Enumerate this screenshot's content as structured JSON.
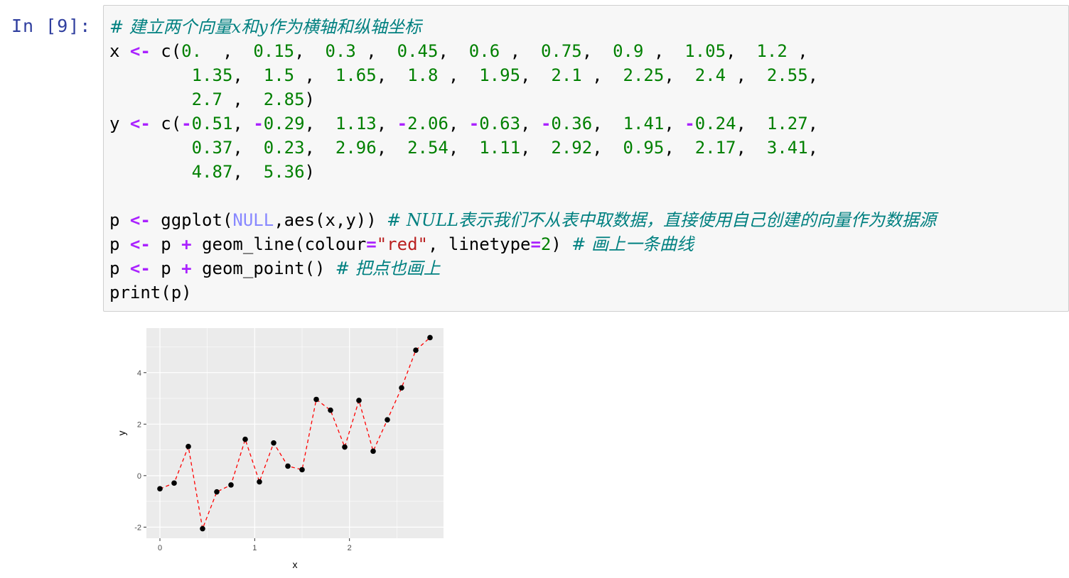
{
  "cell": {
    "prompt": "In [9]:",
    "code_lines": [
      [
        {
          "t": "# 建立两个向量x和y作为横轴和纵轴坐标",
          "c": "cm"
        }
      ],
      [
        {
          "t": "x ",
          "c": "fn"
        },
        {
          "t": "<-",
          "c": "op"
        },
        {
          "t": " c(",
          "c": "fn"
        },
        {
          "t": "0.",
          "c": "num"
        },
        {
          "t": "  ,  ",
          "c": "fn"
        },
        {
          "t": "0.15",
          "c": "num"
        },
        {
          "t": ",  ",
          "c": "fn"
        },
        {
          "t": "0.3",
          "c": "num"
        },
        {
          "t": " ,  ",
          "c": "fn"
        },
        {
          "t": "0.45",
          "c": "num"
        },
        {
          "t": ",  ",
          "c": "fn"
        },
        {
          "t": "0.6",
          "c": "num"
        },
        {
          "t": " ,  ",
          "c": "fn"
        },
        {
          "t": "0.75",
          "c": "num"
        },
        {
          "t": ",  ",
          "c": "fn"
        },
        {
          "t": "0.9",
          "c": "num"
        },
        {
          "t": " ,  ",
          "c": "fn"
        },
        {
          "t": "1.05",
          "c": "num"
        },
        {
          "t": ",  ",
          "c": "fn"
        },
        {
          "t": "1.2",
          "c": "num"
        },
        {
          "t": " ,",
          "c": "fn"
        }
      ],
      [
        {
          "t": "        ",
          "c": "fn"
        },
        {
          "t": "1.35",
          "c": "num"
        },
        {
          "t": ",  ",
          "c": "fn"
        },
        {
          "t": "1.5",
          "c": "num"
        },
        {
          "t": " ,  ",
          "c": "fn"
        },
        {
          "t": "1.65",
          "c": "num"
        },
        {
          "t": ",  ",
          "c": "fn"
        },
        {
          "t": "1.8",
          "c": "num"
        },
        {
          "t": " ,  ",
          "c": "fn"
        },
        {
          "t": "1.95",
          "c": "num"
        },
        {
          "t": ",  ",
          "c": "fn"
        },
        {
          "t": "2.1",
          "c": "num"
        },
        {
          "t": " ,  ",
          "c": "fn"
        },
        {
          "t": "2.25",
          "c": "num"
        },
        {
          "t": ",  ",
          "c": "fn"
        },
        {
          "t": "2.4",
          "c": "num"
        },
        {
          "t": " ,  ",
          "c": "fn"
        },
        {
          "t": "2.55",
          "c": "num"
        },
        {
          "t": ",",
          "c": "fn"
        }
      ],
      [
        {
          "t": "        ",
          "c": "fn"
        },
        {
          "t": "2.7",
          "c": "num"
        },
        {
          "t": " ,  ",
          "c": "fn"
        },
        {
          "t": "2.85",
          "c": "num"
        },
        {
          "t": ")",
          "c": "fn"
        }
      ],
      [
        {
          "t": "y ",
          "c": "fn"
        },
        {
          "t": "<-",
          "c": "op"
        },
        {
          "t": " c(",
          "c": "fn"
        },
        {
          "t": "-",
          "c": "op"
        },
        {
          "t": "0.51",
          "c": "num"
        },
        {
          "t": ", ",
          "c": "fn"
        },
        {
          "t": "-",
          "c": "op"
        },
        {
          "t": "0.29",
          "c": "num"
        },
        {
          "t": ",  ",
          "c": "fn"
        },
        {
          "t": "1.13",
          "c": "num"
        },
        {
          "t": ", ",
          "c": "fn"
        },
        {
          "t": "-",
          "c": "op"
        },
        {
          "t": "2.06",
          "c": "num"
        },
        {
          "t": ", ",
          "c": "fn"
        },
        {
          "t": "-",
          "c": "op"
        },
        {
          "t": "0.63",
          "c": "num"
        },
        {
          "t": ", ",
          "c": "fn"
        },
        {
          "t": "-",
          "c": "op"
        },
        {
          "t": "0.36",
          "c": "num"
        },
        {
          "t": ",  ",
          "c": "fn"
        },
        {
          "t": "1.41",
          "c": "num"
        },
        {
          "t": ", ",
          "c": "fn"
        },
        {
          "t": "-",
          "c": "op"
        },
        {
          "t": "0.24",
          "c": "num"
        },
        {
          "t": ",  ",
          "c": "fn"
        },
        {
          "t": "1.27",
          "c": "num"
        },
        {
          "t": ",",
          "c": "fn"
        }
      ],
      [
        {
          "t": "        ",
          "c": "fn"
        },
        {
          "t": "0.37",
          "c": "num"
        },
        {
          "t": ",  ",
          "c": "fn"
        },
        {
          "t": "0.23",
          "c": "num"
        },
        {
          "t": ",  ",
          "c": "fn"
        },
        {
          "t": "2.96",
          "c": "num"
        },
        {
          "t": ",  ",
          "c": "fn"
        },
        {
          "t": "2.54",
          "c": "num"
        },
        {
          "t": ",  ",
          "c": "fn"
        },
        {
          "t": "1.11",
          "c": "num"
        },
        {
          "t": ",  ",
          "c": "fn"
        },
        {
          "t": "2.92",
          "c": "num"
        },
        {
          "t": ",  ",
          "c": "fn"
        },
        {
          "t": "0.95",
          "c": "num"
        },
        {
          "t": ",  ",
          "c": "fn"
        },
        {
          "t": "2.17",
          "c": "num"
        },
        {
          "t": ",  ",
          "c": "fn"
        },
        {
          "t": "3.41",
          "c": "num"
        },
        {
          "t": ",",
          "c": "fn"
        }
      ],
      [
        {
          "t": "        ",
          "c": "fn"
        },
        {
          "t": "4.87",
          "c": "num"
        },
        {
          "t": ",  ",
          "c": "fn"
        },
        {
          "t": "5.36",
          "c": "num"
        },
        {
          "t": ")",
          "c": "fn"
        }
      ],
      [
        {
          "t": " ",
          "c": "fn"
        }
      ],
      [
        {
          "t": "p ",
          "c": "fn"
        },
        {
          "t": "<-",
          "c": "op"
        },
        {
          "t": " ggplot(",
          "c": "fn"
        },
        {
          "t": "NULL",
          "c": "kw"
        },
        {
          "t": ",aes(x,y)) ",
          "c": "fn"
        },
        {
          "t": "# NULL表示我们不从表中取数据，直接使用自己创建的向量作为数据源",
          "c": "cm"
        }
      ],
      [
        {
          "t": "p ",
          "c": "fn"
        },
        {
          "t": "<-",
          "c": "op"
        },
        {
          "t": " p ",
          "c": "fn"
        },
        {
          "t": "+",
          "c": "op"
        },
        {
          "t": " geom_line(colour",
          "c": "fn"
        },
        {
          "t": "=",
          "c": "op"
        },
        {
          "t": "\"red\"",
          "c": "str"
        },
        {
          "t": ", linetype",
          "c": "fn"
        },
        {
          "t": "=",
          "c": "op"
        },
        {
          "t": "2",
          "c": "num"
        },
        {
          "t": ") ",
          "c": "fn"
        },
        {
          "t": "# 画上一条曲线",
          "c": "cm"
        }
      ],
      [
        {
          "t": "p ",
          "c": "fn"
        },
        {
          "t": "<-",
          "c": "op"
        },
        {
          "t": " p ",
          "c": "fn"
        },
        {
          "t": "+",
          "c": "op"
        },
        {
          "t": " geom_point() ",
          "c": "fn"
        },
        {
          "t": "# 把点也画上",
          "c": "cm"
        }
      ],
      [
        {
          "t": "print(p)",
          "c": "fn"
        }
      ]
    ]
  },
  "chart_data": {
    "type": "line",
    "x": [
      0,
      0.15,
      0.3,
      0.45,
      0.6,
      0.75,
      0.9,
      1.05,
      1.2,
      1.35,
      1.5,
      1.65,
      1.8,
      1.95,
      2.1,
      2.25,
      2.4,
      2.55,
      2.7,
      2.85
    ],
    "y": [
      -0.51,
      -0.29,
      1.13,
      -2.06,
      -0.63,
      -0.36,
      1.41,
      -0.24,
      1.27,
      0.37,
      0.23,
      2.96,
      2.54,
      1.11,
      2.92,
      0.95,
      2.17,
      3.41,
      4.87,
      5.36
    ],
    "xlabel": "x",
    "ylabel": "y",
    "xticks": [
      "0",
      "1",
      "2"
    ],
    "yticks": [
      "-2",
      "0",
      "2",
      "4"
    ],
    "xlim": [
      -0.1425,
      2.9925
    ],
    "ylim": [
      -2.431,
      5.731
    ],
    "line_color": "#ff0000",
    "line_style": "dashed",
    "point_color": "#000000",
    "panel_background": "#ebebeb",
    "grid": true
  }
}
